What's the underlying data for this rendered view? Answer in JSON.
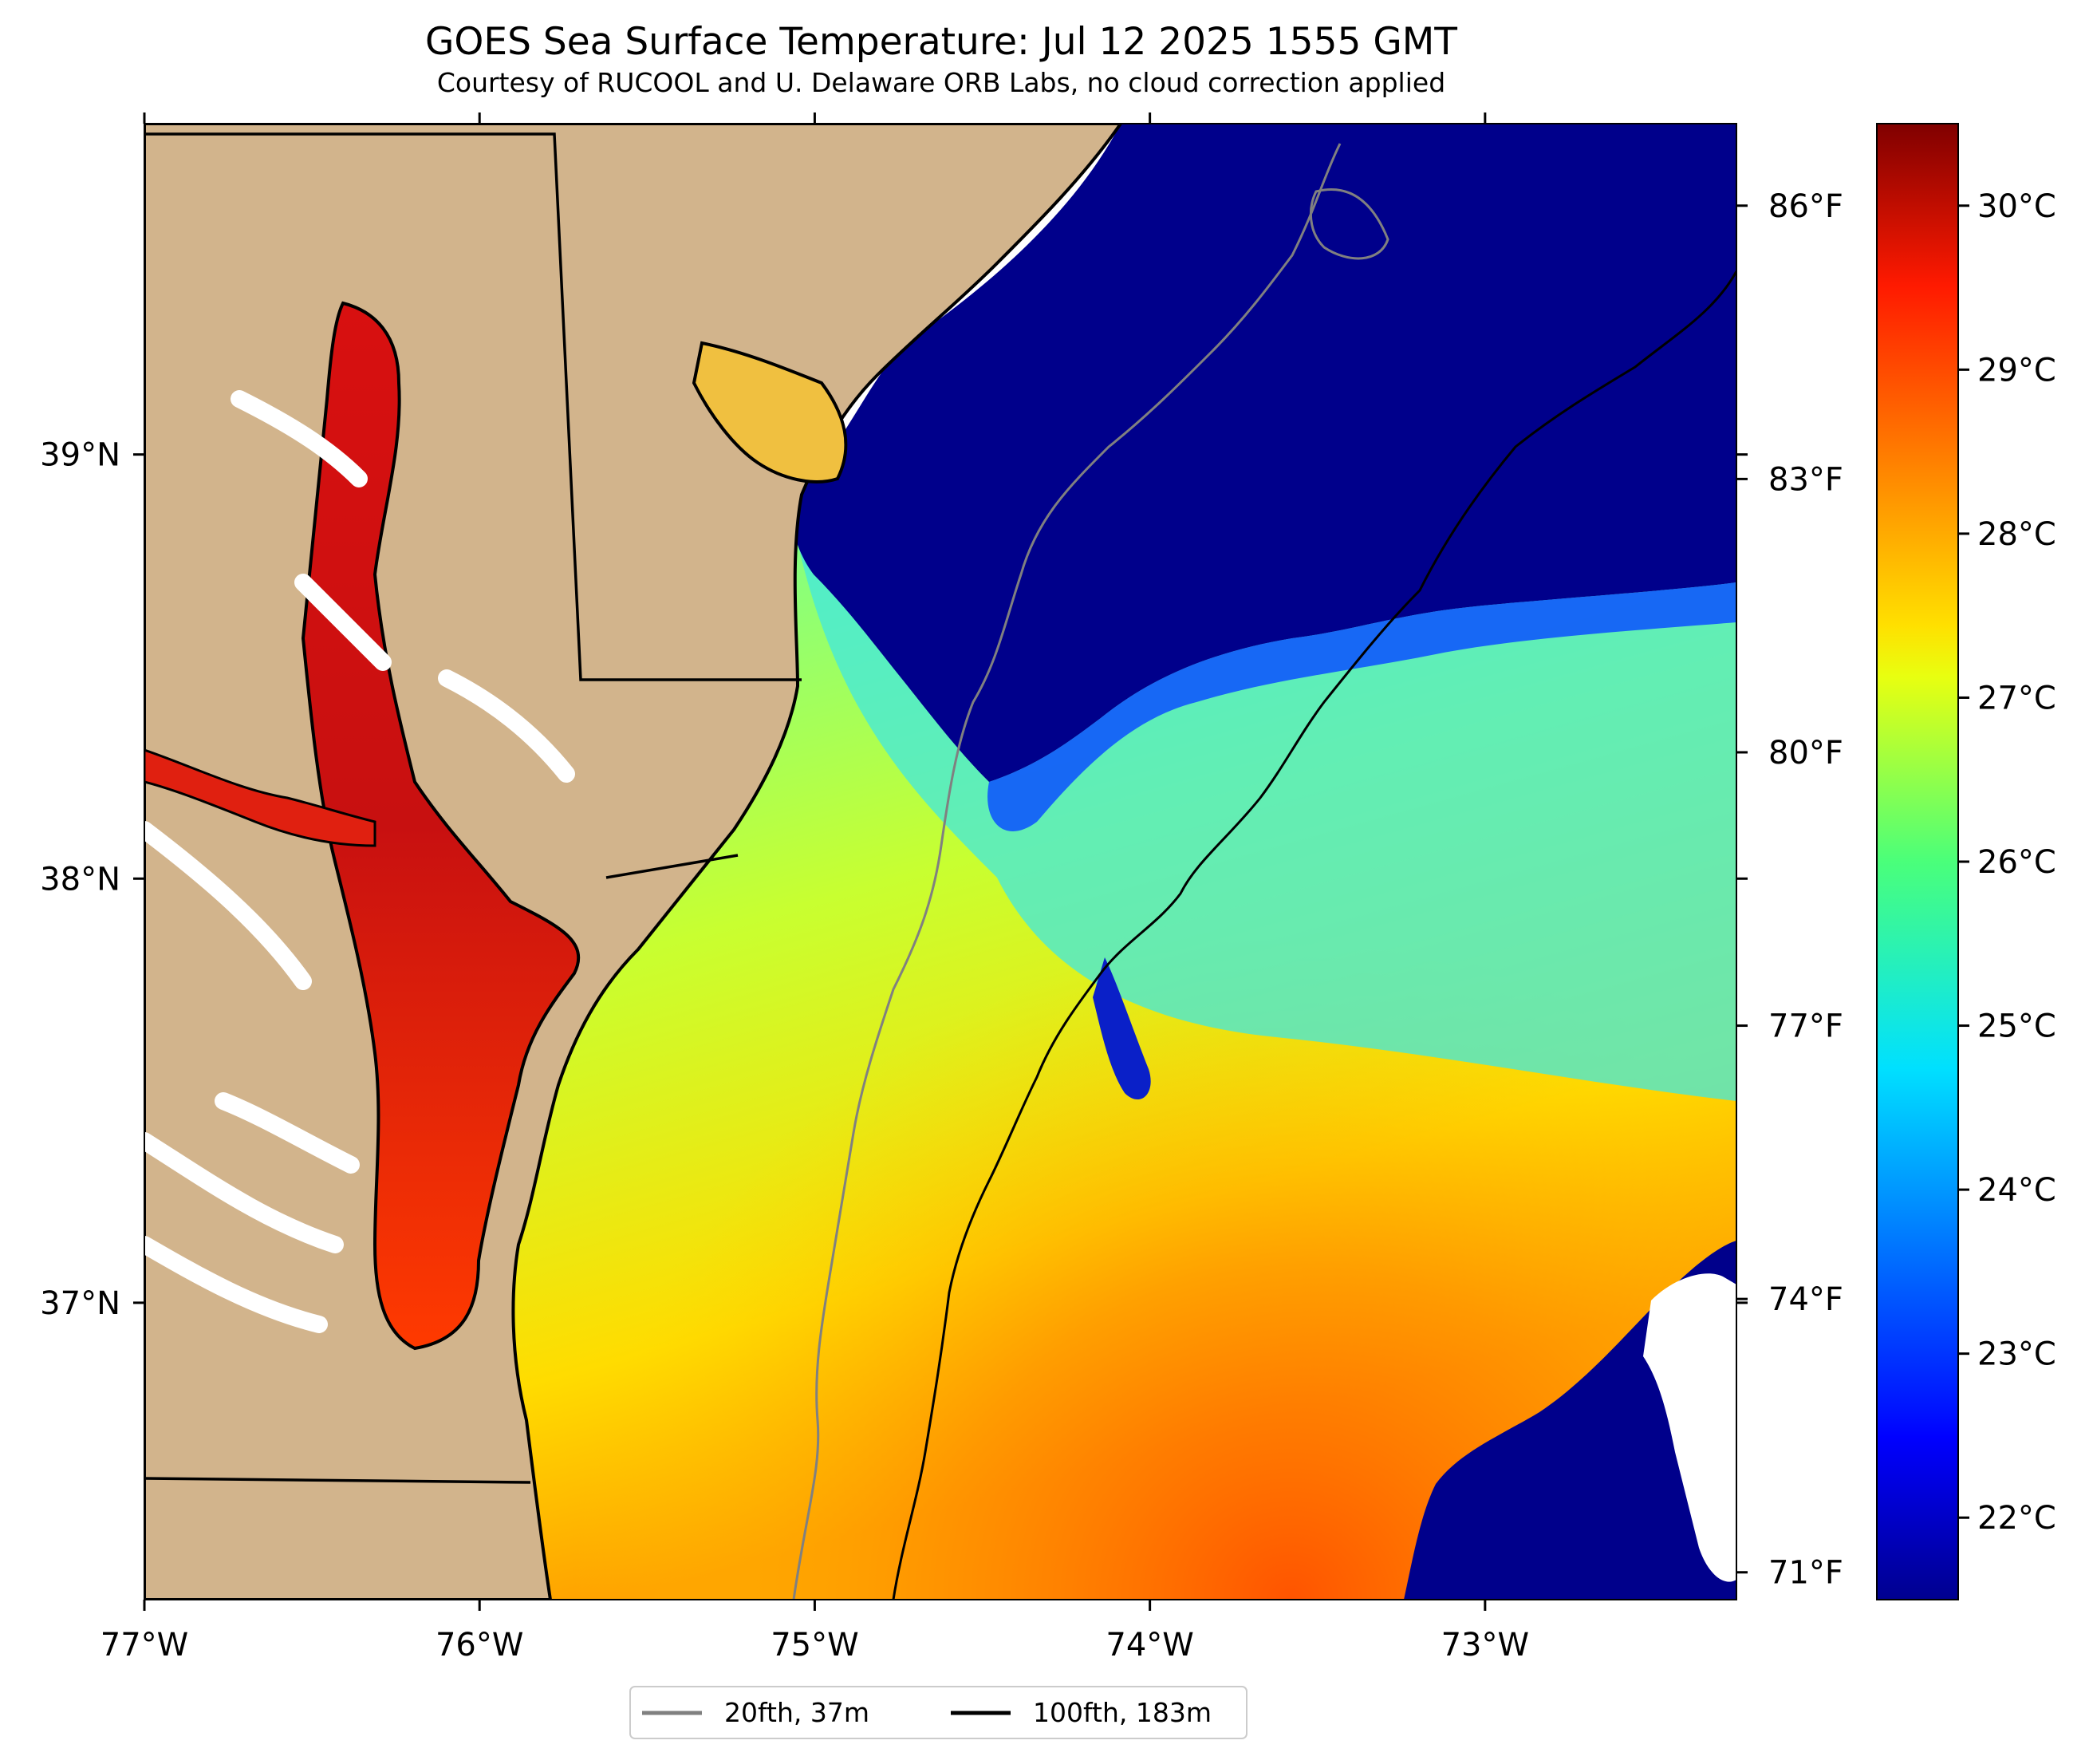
{
  "title": "GOES Sea Surface Temperature: Jul 12 2025 1555 GMT",
  "subtitle": "Courtesy of RUCOOL and U. Delaware ORB Labs, no cloud correction applied",
  "map": {
    "lon_range": [
      -77.0,
      -72.25
    ],
    "lat_range": [
      36.3,
      39.78
    ],
    "lon_ticks": [
      {
        "lon": -77,
        "label": "77°W"
      },
      {
        "lon": -76,
        "label": "76°W"
      },
      {
        "lon": -75,
        "label": "75°W"
      },
      {
        "lon": -74,
        "label": "74°W"
      },
      {
        "lon": -73,
        "label": "73°W"
      }
    ],
    "lat_ticks": [
      {
        "lat": 39,
        "label": "39°N"
      },
      {
        "lat": 38,
        "label": "38°N"
      },
      {
        "lat": 37,
        "label": "37°N"
      }
    ],
    "colors": {
      "land": "#d2b48c",
      "no_data": "#ffffff",
      "cold_water": "#00008b",
      "contour_20fth": "#808080",
      "contour_100fth": "#000000"
    }
  },
  "colorbar": {
    "colormap": "jet",
    "range_c": [
      21.5,
      30.5
    ],
    "celsius_ticks": [
      {
        "value": 22,
        "label": "22°C"
      },
      {
        "value": 23,
        "label": "23°C"
      },
      {
        "value": 24,
        "label": "24°C"
      },
      {
        "value": 25,
        "label": "25°C"
      },
      {
        "value": 26,
        "label": "26°C"
      },
      {
        "value": 27,
        "label": "27°C"
      },
      {
        "value": 28,
        "label": "28°C"
      },
      {
        "value": 29,
        "label": "29°C"
      },
      {
        "value": 30,
        "label": "30°C"
      }
    ],
    "fahrenheit_ticks": [
      {
        "value": 71,
        "label": "71°F"
      },
      {
        "value": 74,
        "label": "74°F"
      },
      {
        "value": 77,
        "label": "77°F"
      },
      {
        "value": 80,
        "label": "80°F"
      },
      {
        "value": 83,
        "label": "83°F"
      },
      {
        "value": 86,
        "label": "86°F"
      }
    ]
  },
  "legend": {
    "position": "bottom-center",
    "entries": [
      {
        "label": "20fth, 37m",
        "color": "#808080"
      },
      {
        "label": "100fth, 183m",
        "color": "#000000"
      }
    ]
  }
}
